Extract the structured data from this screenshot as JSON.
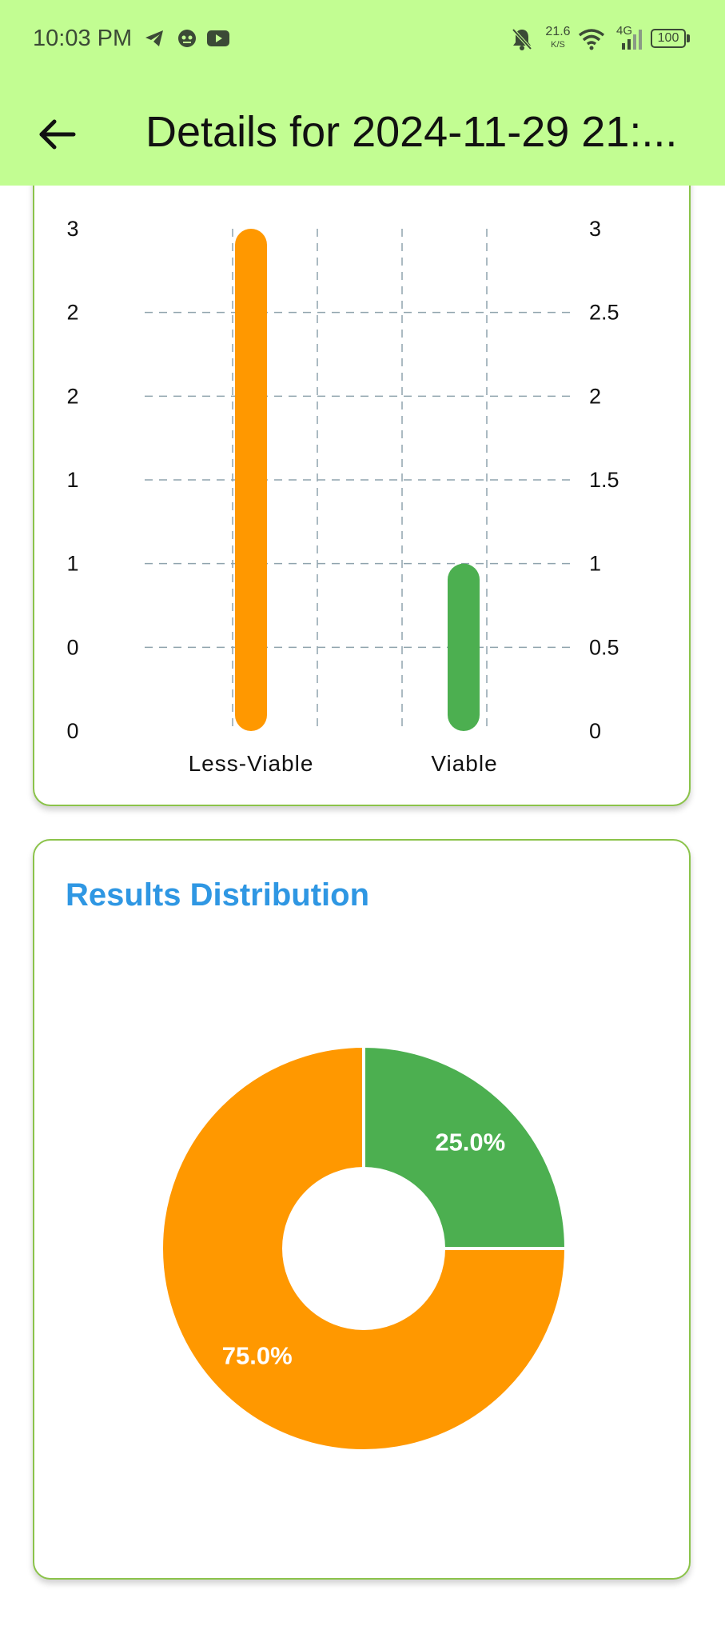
{
  "status_bar": {
    "time": "10:03 PM",
    "speed_value": "21.6",
    "speed_unit": "K/S",
    "network": "4G",
    "battery": "100",
    "icons": [
      "telegram-icon",
      "notification-app-icon",
      "youtube-icon",
      "mute-bell-icon",
      "wifi-icon",
      "signal-icon",
      "battery-icon"
    ]
  },
  "app_bar": {
    "title": "Details for 2024-11-29 21:...",
    "back_icon": "arrow-left-icon",
    "background": "#c2fd92"
  },
  "bar_chart": {
    "left_ticks": [
      "3",
      "2",
      "2",
      "1",
      "1",
      "0",
      "0"
    ],
    "right_ticks": [
      "3",
      "2.5",
      "2",
      "1.5",
      "1",
      "0.5",
      "0"
    ]
  },
  "pie_card": {
    "title": "Results Distribution"
  },
  "chart_data": [
    {
      "type": "bar",
      "categories": [
        "Less-Viable",
        "Viable"
      ],
      "values": [
        3,
        1
      ],
      "colors": [
        "#ff9800",
        "#4caf50"
      ],
      "ylim": [
        0,
        3
      ],
      "grid": true
    },
    {
      "type": "pie",
      "donut": true,
      "title": "Results Distribution",
      "slices": [
        {
          "label": "75.0%",
          "value": 75.0,
          "color": "#ff9800"
        },
        {
          "label": "25.0%",
          "value": 25.0,
          "color": "#4caf50"
        }
      ]
    }
  ]
}
